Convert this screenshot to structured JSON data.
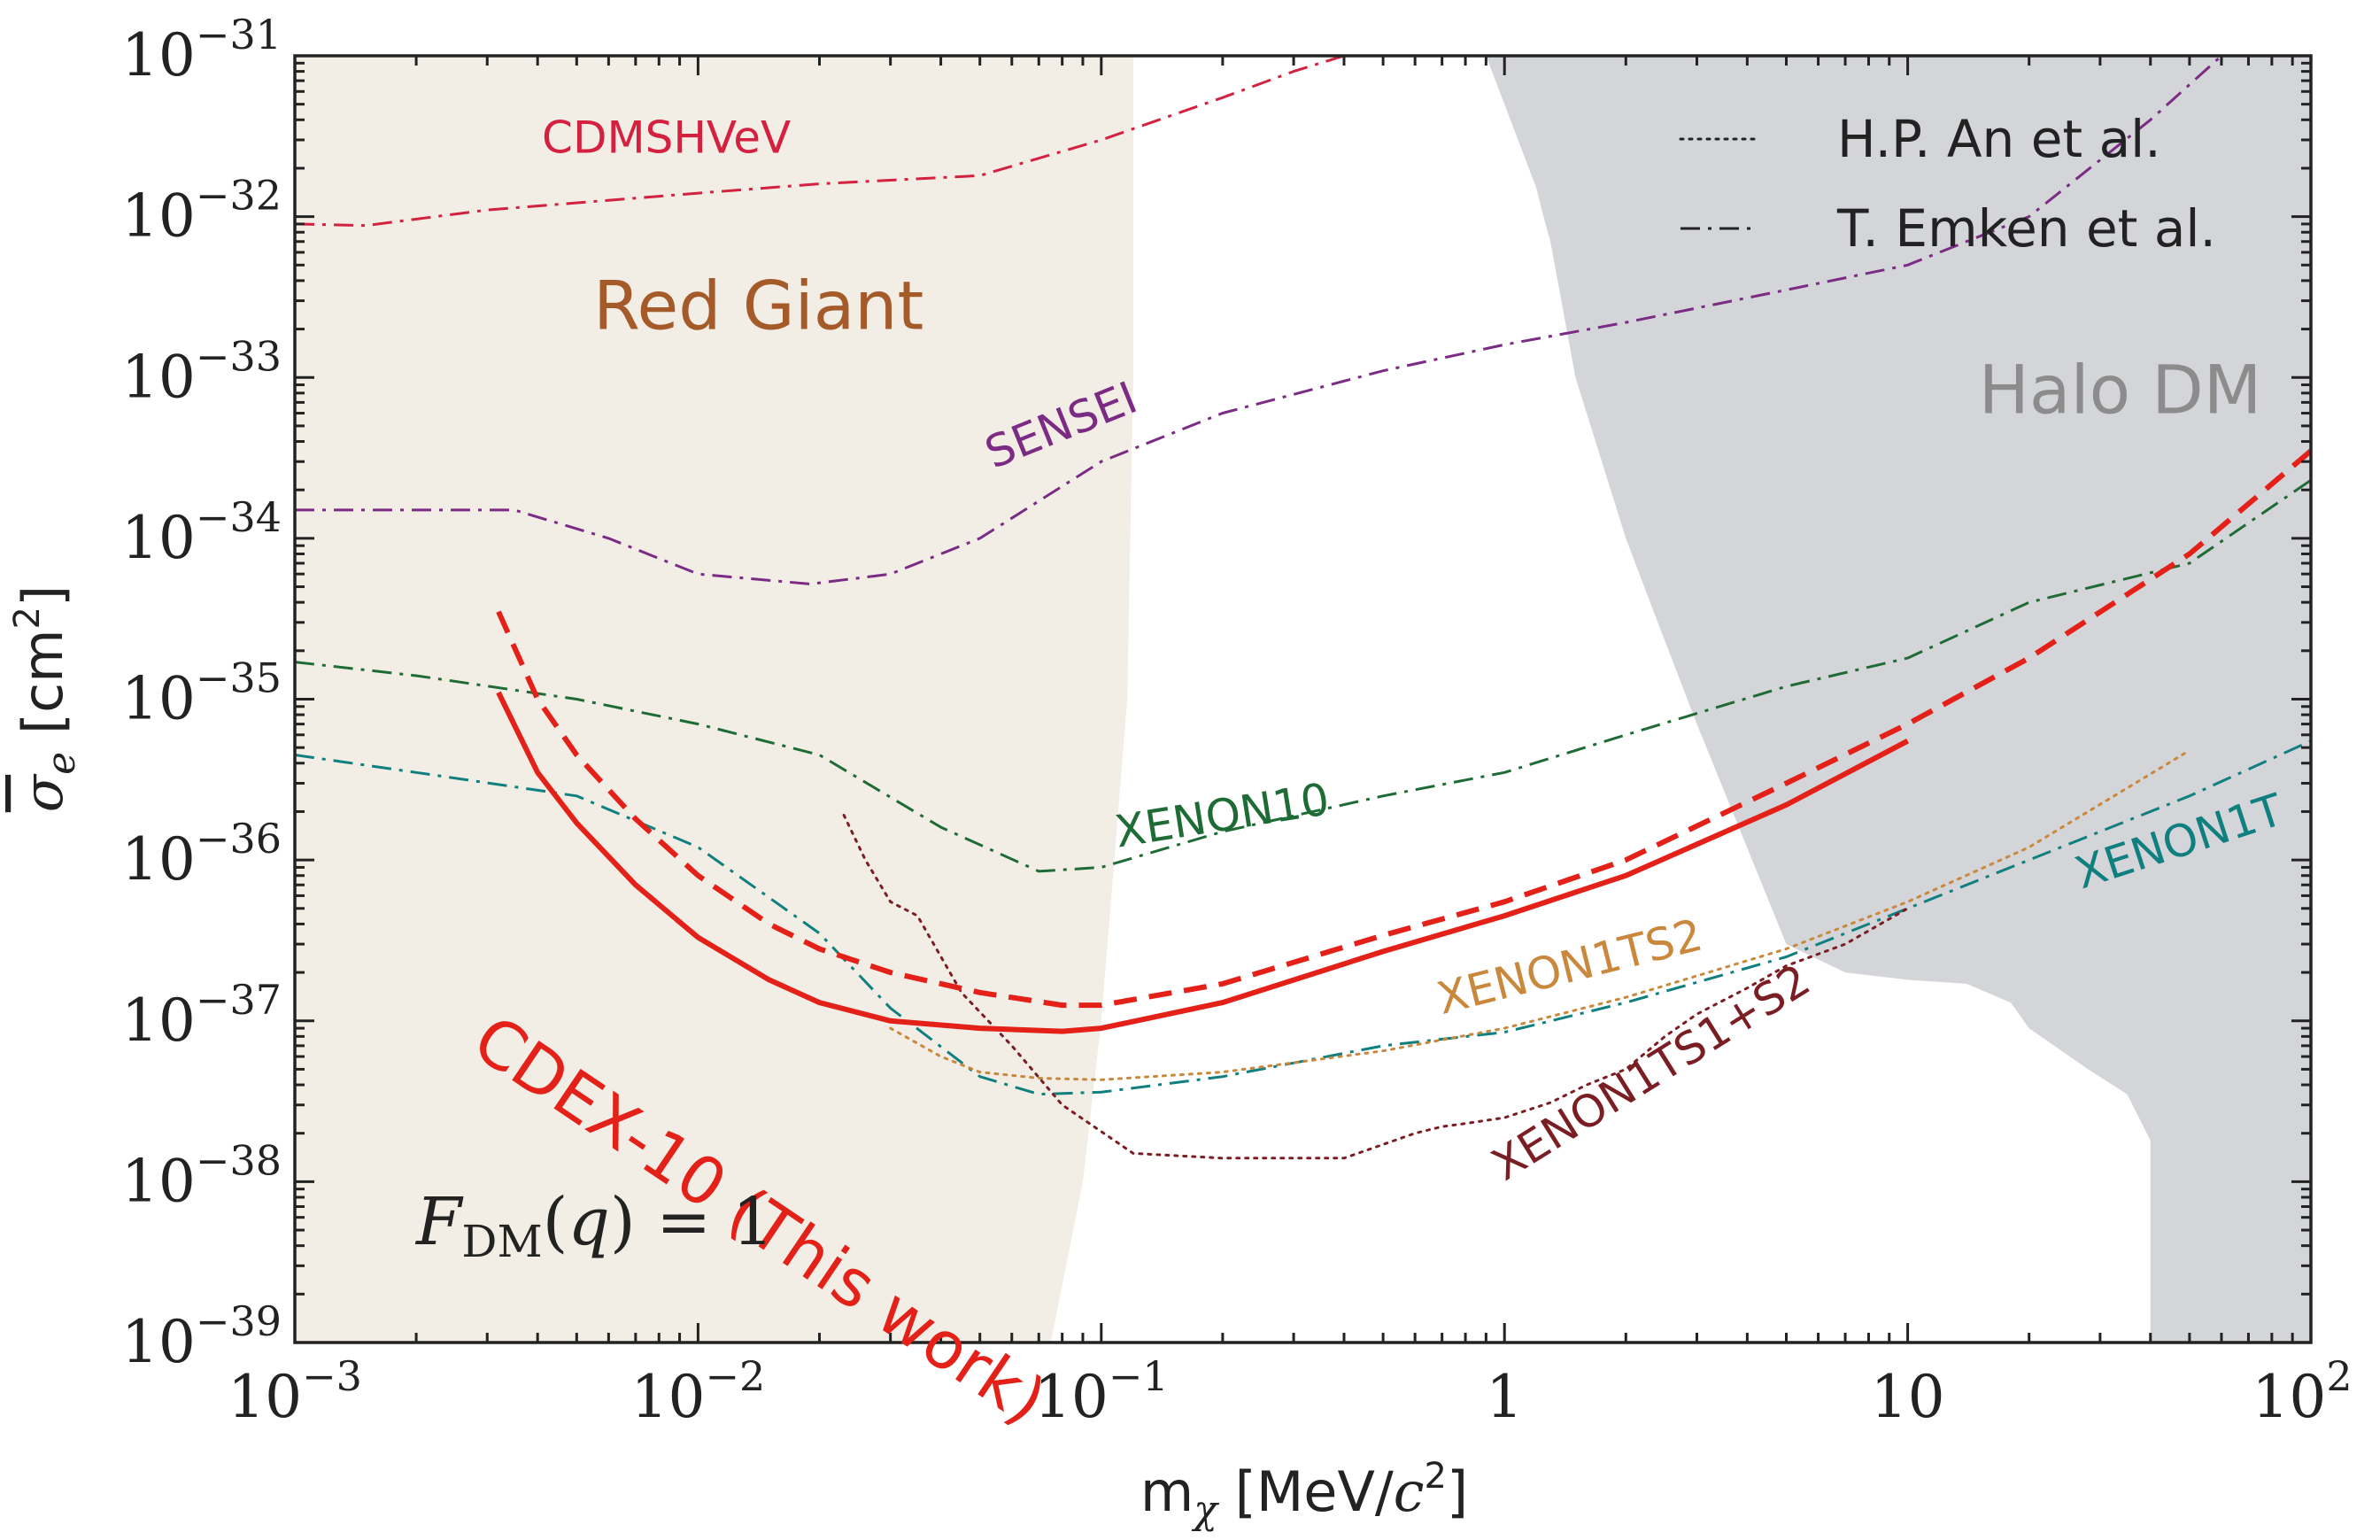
{
  "chart_data": {
    "type": "line",
    "xscale": "log",
    "yscale": "log",
    "xlim": [
      0.001,
      100
    ],
    "ylim": [
      1e-39,
      1e-31
    ],
    "xlabel": "m_χ [MeV/c²]",
    "ylabel": "σ̄_e [cm²]",
    "x_ticks": [
      {
        "value": 0.001,
        "base": "10",
        "exp": "−3"
      },
      {
        "value": 0.01,
        "base": "10",
        "exp": "−2"
      },
      {
        "value": 0.1,
        "base": "10",
        "exp": "−1"
      },
      {
        "value": 1,
        "base": "1",
        "exp": ""
      },
      {
        "value": 10,
        "base": "10",
        "exp": ""
      },
      {
        "value": 100,
        "base": "10",
        "exp": "2"
      }
    ],
    "y_ticks": [
      {
        "value": 1e-31,
        "base": "10",
        "exp": "−31"
      },
      {
        "value": 1e-32,
        "base": "10",
        "exp": "−32"
      },
      {
        "value": 1e-33,
        "base": "10",
        "exp": "−33"
      },
      {
        "value": 1e-34,
        "base": "10",
        "exp": "−34"
      },
      {
        "value": 1e-35,
        "base": "10",
        "exp": "−35"
      },
      {
        "value": 1e-36,
        "base": "10",
        "exp": "−36"
      },
      {
        "value": 1e-37,
        "base": "10",
        "exp": "−37"
      },
      {
        "value": 1e-38,
        "base": "10",
        "exp": "−38"
      },
      {
        "value": 1e-39,
        "base": "10",
        "exp": "−39"
      }
    ],
    "regions": [
      {
        "name": "Red Giant",
        "color": "#f2eee6",
        "label_color": "#a55a2a",
        "label_at": [
          0.0055,
          2e-33
        ],
        "label_size": 76,
        "polygon": [
          [
            0.001,
            1e-31
          ],
          [
            0.12,
            1e-31
          ],
          [
            0.12,
            1e-33
          ],
          [
            0.116,
            1e-35
          ],
          [
            0.1,
            1e-37
          ],
          [
            0.09,
            1e-38
          ],
          [
            0.075,
            1e-39
          ],
          [
            0.001,
            1e-39
          ]
        ]
      },
      {
        "name": "Halo DM",
        "color": "#d4d5d8",
        "label_color": "#8c8c8c",
        "label_at": [
          15,
          6e-34
        ],
        "label_size": 76,
        "polygon": [
          [
            0.9,
            1e-31
          ],
          [
            100,
            1e-31
          ],
          [
            100,
            1e-39
          ],
          [
            40,
            1e-39
          ],
          [
            40,
            1.8e-38
          ],
          [
            35,
            3.5e-38
          ],
          [
            28,
            5e-38
          ],
          [
            20,
            9e-38
          ],
          [
            18,
            1.3e-37
          ],
          [
            14,
            1.7e-37
          ],
          [
            10,
            1.8e-37
          ],
          [
            7,
            2e-37
          ],
          [
            5,
            3e-37
          ],
          [
            3,
            7e-36
          ],
          [
            2.4,
            3e-35
          ],
          [
            2,
            1e-34
          ],
          [
            1.5,
            1e-33
          ],
          [
            1.3,
            7e-33
          ],
          [
            1.25,
            1e-32
          ],
          [
            1.2,
            1.5e-32
          ]
        ]
      }
    ],
    "series": [
      {
        "name": "CDMSHVeV",
        "color": "#d4213f",
        "style": "dashdot",
        "width": 3,
        "label_at": [
          0.0041,
          2.5e-32
        ],
        "label_rotation": 0,
        "label_size": 50,
        "x": [
          0.001,
          0.0015,
          0.003,
          0.01,
          0.02,
          0.05,
          0.1,
          0.2,
          0.3,
          0.4
        ],
        "y": [
          9e-33,
          8.8e-33,
          1.1e-32,
          1.4e-32,
          1.6e-32,
          1.8e-32,
          3e-32,
          5.5e-32,
          8e-32,
          1e-31
        ]
      },
      {
        "name": "SENSEI",
        "color": "#7b2b84",
        "style": "dashdot",
        "width": 3,
        "label_at": [
          0.054,
          2.7e-34
        ],
        "label_rotation": -22,
        "label_size": 50,
        "x": [
          0.001,
          0.0035,
          0.006,
          0.01,
          0.019,
          0.03,
          0.05,
          0.1,
          0.2,
          0.5,
          1,
          2,
          5,
          10,
          20,
          40,
          60
        ],
        "y": [
          1.5e-34,
          1.5e-34,
          1e-34,
          6e-35,
          5.2e-35,
          6e-35,
          1e-34,
          3e-34,
          6e-34,
          1.1e-33,
          1.6e-33,
          2.2e-33,
          3.5e-33,
          5e-33,
          1e-32,
          4e-32,
          1e-31
        ]
      },
      {
        "name": "XENON10",
        "color": "#1f6b35",
        "style": "dashdot",
        "width": 3,
        "label_at": [
          0.11,
          1.2e-36
        ],
        "label_rotation": -9,
        "label_size": 50,
        "x": [
          0.001,
          0.002,
          0.005,
          0.01,
          0.02,
          0.04,
          0.07,
          0.1,
          0.2,
          0.5,
          1,
          2,
          5,
          10,
          20,
          50,
          100
        ],
        "y": [
          1.7e-35,
          1.4e-35,
          1e-35,
          7e-36,
          4.5e-36,
          1.6e-36,
          8.5e-37,
          9e-37,
          1.5e-36,
          2.5e-36,
          3.5e-36,
          6e-36,
          1.2e-35,
          1.8e-35,
          4e-35,
          7e-35,
          2.3e-34
        ]
      },
      {
        "name": "XENON1T",
        "color": "#0f7f80",
        "style": "dashdot",
        "width": 3,
        "label_at": [
          27,
          6.6e-37
        ],
        "label_rotation": -18,
        "label_size": 50,
        "x": [
          0.001,
          0.002,
          0.005,
          0.01,
          0.02,
          0.03,
          0.05,
          0.07,
          0.1,
          0.2,
          0.5,
          1,
          2,
          5,
          10,
          20,
          50,
          100
        ],
        "y": [
          4.5e-36,
          3.5e-36,
          2.5e-36,
          1.2e-36,
          3.5e-37,
          1.2e-37,
          4.5e-38,
          3.5e-38,
          3.6e-38,
          4.5e-38,
          7e-38,
          8.5e-38,
          1.3e-37,
          2.5e-37,
          5e-37,
          1e-36,
          2.5e-36,
          5.5e-36
        ]
      },
      {
        "name": "XENON1TS2",
        "color": "#c9883c",
        "style": "dotted",
        "width": 3,
        "label_at": [
          0.7,
          1.1e-37
        ],
        "label_rotation": -14,
        "label_size": 50,
        "x": [
          0.03,
          0.04,
          0.05,
          0.07,
          0.1,
          0.2,
          0.5,
          1,
          2,
          5,
          10,
          20,
          50
        ],
        "y": [
          9e-38,
          6e-38,
          4.8e-38,
          4.4e-38,
          4.3e-38,
          4.8e-38,
          6.5e-38,
          9e-38,
          1.4e-37,
          2.8e-37,
          5.5e-37,
          1.2e-36,
          4.8e-36
        ]
      },
      {
        "name": "XENON1TS1+S2",
        "color": "#7a1e24",
        "style": "dotted",
        "width": 3,
        "label_at": [
          1.0,
          1e-38
        ],
        "label_rotation": -32,
        "label_size": 50,
        "x": [
          0.023,
          0.026,
          0.03,
          0.035,
          0.045,
          0.06,
          0.08,
          0.12,
          0.2,
          0.4,
          0.6,
          0.7,
          0.8,
          1,
          1.3,
          1.6,
          2,
          2.5,
          3,
          4,
          5,
          7,
          10
        ],
        "y": [
          1.9e-36,
          1e-36,
          5.5e-37,
          4.5e-37,
          1.5e-37,
          7e-38,
          3e-38,
          1.5e-38,
          1.4e-38,
          1.4e-38,
          2e-38,
          2.2e-38,
          2.3e-38,
          2.5e-38,
          3.1e-38,
          4e-38,
          5e-38,
          8e-38,
          1.1e-37,
          1.6e-37,
          2.2e-37,
          3e-37,
          5e-37
        ]
      },
      {
        "name": "CDEX-10 (This work)",
        "color": "#e32119",
        "style": "solid",
        "width": 6,
        "label_at": [
          0.0027,
          6.5e-38
        ],
        "label_rotation": 34,
        "label_size": 74,
        "x": [
          0.0032,
          0.004,
          0.005,
          0.007,
          0.01,
          0.015,
          0.02,
          0.03,
          0.05,
          0.08,
          0.1,
          0.2,
          0.5,
          1,
          2,
          5,
          10
        ],
        "y": [
          1.1e-35,
          3.5e-36,
          1.7e-36,
          7e-37,
          3.3e-37,
          1.8e-37,
          1.3e-37,
          1e-37,
          9e-38,
          8.6e-38,
          9e-38,
          1.3e-37,
          2.7e-37,
          4.5e-37,
          8e-37,
          2.2e-36,
          5.5e-36
        ]
      },
      {
        "name": "CDEX-10 (This work) — dashed",
        "color": "#e32119",
        "style": "dashed",
        "width": 6,
        "x": [
          0.0032,
          0.004,
          0.005,
          0.007,
          0.01,
          0.015,
          0.02,
          0.03,
          0.05,
          0.08,
          0.1,
          0.2,
          0.5,
          1,
          2,
          5,
          10,
          20,
          50,
          100
        ],
        "y": [
          3.5e-35,
          1e-35,
          4.5e-36,
          1.8e-36,
          8e-37,
          4e-37,
          2.8e-37,
          2e-37,
          1.5e-37,
          1.25e-37,
          1.25e-37,
          1.7e-37,
          3.4e-37,
          5.5e-37,
          1e-36,
          3e-36,
          7e-36,
          1.8e-35,
          8e-35,
          3.5e-34
        ]
      }
    ],
    "legend": {
      "placement": "top-right",
      "entries": [
        {
          "label": "H.P. An et al.",
          "style": "dotted"
        },
        {
          "label": "T. Emken et al.",
          "style": "dashdot"
        }
      ]
    },
    "annotation": {
      "text": "F_DM(q) = 1"
    },
    "grid": false
  }
}
